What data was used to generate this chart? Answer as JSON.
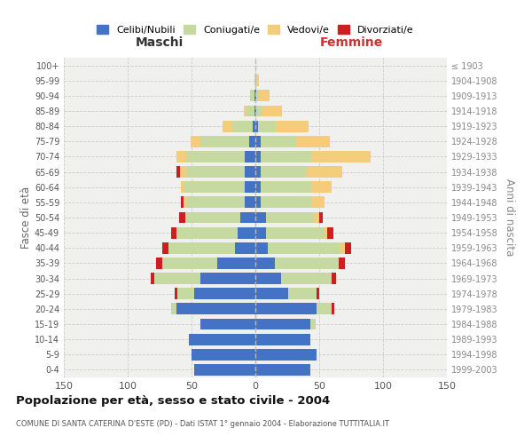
{
  "age_groups": [
    "100+",
    "95-99",
    "90-94",
    "85-89",
    "80-84",
    "75-79",
    "70-74",
    "65-69",
    "60-64",
    "55-59",
    "50-54",
    "45-49",
    "40-44",
    "35-39",
    "30-34",
    "25-29",
    "20-24",
    "15-19",
    "10-14",
    "5-9",
    "0-4"
  ],
  "birth_years": [
    "≤ 1903",
    "1904-1908",
    "1909-1913",
    "1914-1918",
    "1919-1923",
    "1924-1928",
    "1929-1933",
    "1934-1938",
    "1939-1943",
    "1944-1948",
    "1949-1953",
    "1954-1958",
    "1959-1963",
    "1964-1968",
    "1969-1973",
    "1974-1978",
    "1979-1983",
    "1984-1988",
    "1989-1993",
    "1994-1998",
    "1999-2003"
  ],
  "maschi_celibi": [
    0,
    0,
    1,
    1,
    2,
    5,
    8,
    8,
    8,
    8,
    12,
    14,
    16,
    30,
    43,
    48,
    62,
    43,
    52,
    50,
    48
  ],
  "maschi_coniugati": [
    0,
    1,
    3,
    6,
    16,
    38,
    46,
    46,
    48,
    46,
    43,
    48,
    52,
    43,
    36,
    13,
    4,
    0,
    0,
    0,
    0
  ],
  "maschi_vedovi": [
    0,
    0,
    0,
    2,
    8,
    8,
    8,
    5,
    2,
    2,
    0,
    0,
    0,
    0,
    0,
    0,
    0,
    0,
    0,
    0,
    0
  ],
  "maschi_divorziati": [
    0,
    0,
    0,
    0,
    0,
    0,
    0,
    3,
    0,
    2,
    5,
    4,
    5,
    5,
    3,
    2,
    0,
    0,
    0,
    0,
    0
  ],
  "femmine_nubili": [
    0,
    0,
    1,
    1,
    2,
    4,
    4,
    4,
    4,
    4,
    8,
    8,
    10,
    15,
    20,
    26,
    48,
    43,
    43,
    48,
    43
  ],
  "femmine_coniugate": [
    0,
    1,
    2,
    4,
    14,
    28,
    40,
    36,
    40,
    40,
    38,
    46,
    56,
    50,
    40,
    22,
    12,
    4,
    0,
    0,
    0
  ],
  "femmine_vedove": [
    0,
    2,
    8,
    16,
    26,
    26,
    46,
    28,
    16,
    10,
    4,
    2,
    4,
    0,
    0,
    0,
    0,
    0,
    0,
    0,
    0
  ],
  "femmine_divorziate": [
    0,
    0,
    0,
    0,
    0,
    0,
    0,
    0,
    0,
    0,
    3,
    5,
    5,
    5,
    3,
    2,
    2,
    0,
    0,
    0,
    0
  ],
  "color_celibi": "#4472c4",
  "color_coniugati": "#c5d9a0",
  "color_vedovi": "#f5cc7a",
  "color_divorziati": "#cc2020",
  "title": "Popolazione per età, sesso e stato civile - 2004",
  "subtitle": "COMUNE DI SANTA CATERINA D'ESTE (PD) - Dati ISTAT 1° gennaio 2004 - Elaborazione TUTTITALIA.IT",
  "ylabel_left": "Fasce di età",
  "ylabel_right": "Anni di nascita",
  "xlabel_maschi": "Maschi",
  "xlabel_femmine": "Femmine",
  "xlim": 150
}
